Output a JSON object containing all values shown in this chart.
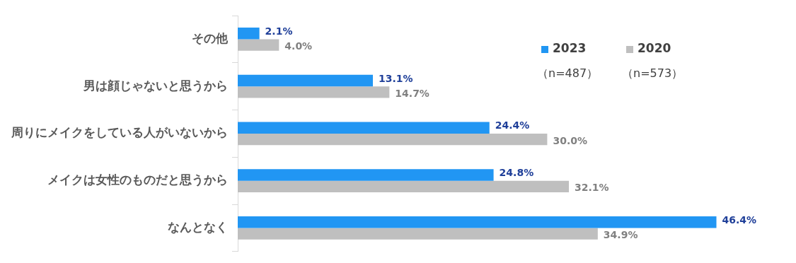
{
  "chart_data": {
    "type": "bar",
    "orientation": "horizontal",
    "categories": [
      "その他",
      "男は顔じゃないと思うから",
      "周りにメイクをしている人がいないから",
      "メイクは女性のものだと思うから",
      "なんとなく"
    ],
    "series": [
      {
        "name": "2023",
        "color": "#2196f3",
        "values": [
          2.1,
          13.1,
          24.4,
          24.8,
          46.4
        ],
        "value_labels": [
          "2.1%",
          "13.1%",
          "24.4%",
          "24.8%",
          "46.4%"
        ]
      },
      {
        "name": "2020",
        "color": "#bfbfbf",
        "values": [
          4.0,
          14.7,
          30.0,
          32.1,
          34.9
        ],
        "value_labels": [
          "4.0%",
          "14.7%",
          "30.0%",
          "32.1%",
          "34.9%"
        ]
      }
    ],
    "legend": "top right",
    "annotations": [
      "（n=487）",
      "（n=573）"
    ]
  }
}
